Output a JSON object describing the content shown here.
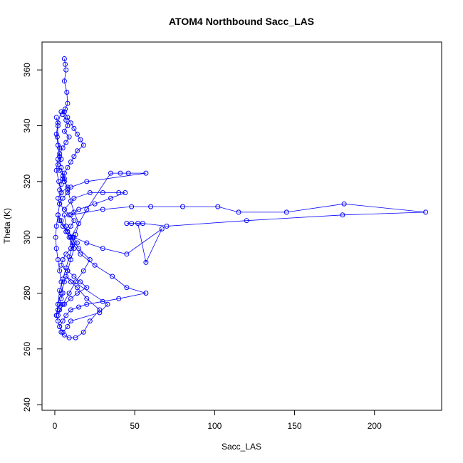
{
  "chart_data": {
    "type": "scatter",
    "title": "ATOM4 Northbound Sacc_LAS",
    "xlabel": "Sacc_LAS",
    "ylabel": "Theta (K)",
    "xlim": [
      -8,
      242
    ],
    "ylim": [
      238,
      370
    ],
    "xticks": [
      0,
      50,
      100,
      150,
      200
    ],
    "yticks": [
      240,
      260,
      280,
      300,
      320,
      340,
      360
    ],
    "grid": false,
    "legend": "none",
    "series_color": "#0000ff",
    "style": "points connected by lines",
    "series": [
      {
        "x": [
          6,
          6.5,
          7,
          6,
          7.5,
          8,
          6.5,
          5,
          7,
          8,
          6,
          9,
          7,
          5,
          3,
          4,
          2,
          3,
          5,
          6,
          8,
          4,
          2,
          3,
          6,
          9,
          12,
          10,
          8,
          11,
          14,
          10,
          7,
          5,
          4,
          8,
          12,
          16,
          20,
          14,
          10,
          6,
          3,
          2,
          5,
          9,
          13,
          18,
          22,
          15,
          10,
          20,
          35,
          41,
          46,
          57,
          20,
          10,
          8,
          5,
          3,
          6,
          12,
          22,
          30,
          40,
          44,
          35,
          25,
          15,
          10,
          30,
          48,
          60,
          80,
          102,
          115,
          145,
          181,
          232,
          180,
          120,
          70,
          55,
          48,
          45,
          52,
          57,
          67,
          45,
          30,
          20,
          12,
          8,
          5,
          3,
          2,
          4,
          7,
          11,
          16,
          25,
          36,
          45,
          57,
          40,
          30,
          20,
          15,
          10,
          7,
          5,
          3,
          4,
          6,
          9,
          13,
          18,
          22,
          28,
          20,
          14,
          10,
          7,
          33,
          28,
          10,
          8,
          5,
          3,
          2,
          1,
          2,
          4,
          6,
          8,
          10,
          12,
          9,
          7,
          6
        ],
        "y": [
          364,
          362,
          360,
          356,
          352,
          348,
          346,
          344,
          342,
          340,
          338,
          336,
          334,
          332,
          330,
          328,
          326,
          324,
          322,
          320,
          318,
          316,
          314,
          312,
          310,
          308,
          306,
          304,
          302,
          300,
          298,
          296,
          294,
          292,
          290,
          288,
          286,
          284,
          282,
          280,
          278,
          276,
          274,
          272,
          276,
          280,
          284,
          288,
          292,
          296,
          300,
          310,
          323,
          323,
          323,
          323,
          320,
          318,
          316,
          314,
          312,
          310,
          314,
          316,
          316,
          316,
          316,
          314,
          312,
          310,
          308,
          310,
          311,
          311,
          311,
          311,
          309,
          309,
          312,
          309,
          308,
          306,
          304,
          305,
          305,
          305,
          305,
          291,
          303,
          294,
          296,
          298,
          300,
          302,
          304,
          306,
          308,
          306,
          302,
          298,
          294,
          290,
          286,
          282,
          280,
          278,
          277,
          276,
          275,
          274,
          272,
          270,
          268,
          266,
          265,
          264,
          264,
          266,
          270,
          274,
          278,
          282,
          284,
          286,
          276,
          273,
          270,
          268,
          266,
          268,
          270,
          272,
          276,
          280,
          284,
          288,
          292,
          296,
          300,
          304,
          308
        ]
      },
      {
        "x": [
          1,
          2,
          1.5,
          3,
          2,
          1,
          2.5,
          4,
          3,
          2,
          1,
          0.5,
          1,
          2,
          3,
          4,
          5,
          4,
          3,
          2,
          1,
          2,
          3,
          5,
          7,
          9,
          11,
          13,
          15,
          12,
          10,
          8,
          6,
          4,
          3,
          2,
          1,
          2,
          4,
          6,
          8,
          10,
          12,
          14,
          16,
          18,
          14,
          12,
          10,
          8,
          6,
          5,
          4,
          3
        ],
        "y": [
          343,
          340,
          336,
          332,
          328,
          324,
          320,
          316,
          312,
          308,
          304,
          300,
          296,
          292,
          288,
          284,
          280,
          278,
          276,
          274,
          272,
          276,
          281,
          285,
          289,
          293,
          297,
          301,
          305,
          309,
          313,
          317,
          321,
          325,
          329,
          333,
          337,
          341,
          345,
          345,
          343,
          341,
          339,
          337,
          335,
          333,
          331,
          329,
          327,
          325,
          323,
          321,
          319,
          317
        ]
      }
    ]
  }
}
